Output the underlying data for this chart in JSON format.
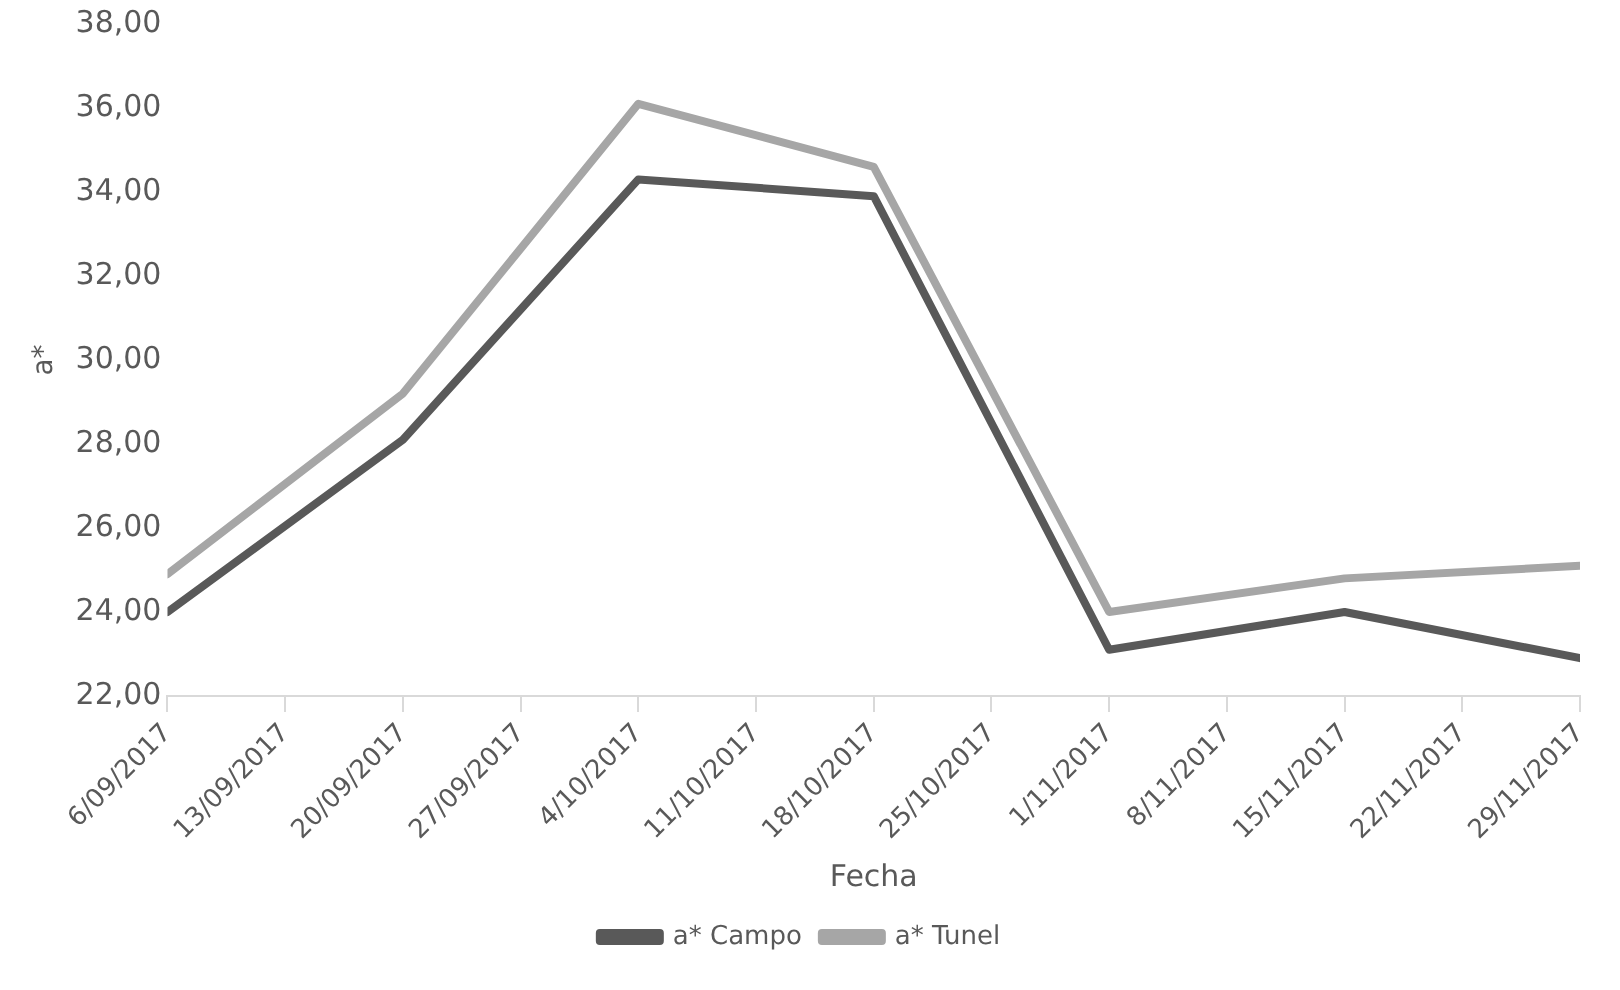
{
  "chart_data": {
    "type": "line",
    "xlabel": "Fecha",
    "ylabel": "a*",
    "x": [
      "2017-09-06",
      "2017-09-20",
      "2017-10-04",
      "2017-10-18",
      "2017-11-01",
      "2017-11-15",
      "2017-11-29"
    ],
    "series": [
      {
        "name": "a* Campo",
        "color": "#595959",
        "values": [
          24.0,
          28.1,
          34.3,
          33.9,
          23.1,
          24.0,
          22.9
        ]
      },
      {
        "name": "a* Tunel",
        "color": "#a6a6a6",
        "values": [
          24.9,
          29.2,
          36.1,
          34.6,
          24.0,
          24.8,
          25.1
        ]
      }
    ],
    "xlim": [
      "2017-09-06",
      "2017-11-29"
    ],
    "xticks": [
      {
        "value": "2017-09-06",
        "label": "6/09/2017"
      },
      {
        "value": "2017-09-13",
        "label": "13/09/2017"
      },
      {
        "value": "2017-09-20",
        "label": "20/09/2017"
      },
      {
        "value": "2017-09-27",
        "label": "27/09/2017"
      },
      {
        "value": "2017-10-04",
        "label": "4/10/2017"
      },
      {
        "value": "2017-10-11",
        "label": "11/10/2017"
      },
      {
        "value": "2017-10-18",
        "label": "18/10/2017"
      },
      {
        "value": "2017-10-25",
        "label": "25/10/2017"
      },
      {
        "value": "2017-11-01",
        "label": "1/11/2017"
      },
      {
        "value": "2017-11-08",
        "label": "8/11/2017"
      },
      {
        "value": "2017-11-15",
        "label": "15/11/2017"
      },
      {
        "value": "2017-11-22",
        "label": "22/11/2017"
      },
      {
        "value": "2017-11-29",
        "label": "29/11/2017"
      }
    ],
    "ylim": [
      22,
      38
    ],
    "yticks": [
      {
        "value": 22,
        "label": "22,00"
      },
      {
        "value": 24,
        "label": "24,00"
      },
      {
        "value": 26,
        "label": "26,00"
      },
      {
        "value": 28,
        "label": "28,00"
      },
      {
        "value": 30,
        "label": "30,00"
      },
      {
        "value": 32,
        "label": "32,00"
      },
      {
        "value": 34,
        "label": "34,00"
      },
      {
        "value": 36,
        "label": "36,00"
      },
      {
        "value": 38,
        "label": "38,00"
      }
    ],
    "grid": false,
    "legend": "bottom",
    "marker": "none",
    "line_style": "solid"
  }
}
